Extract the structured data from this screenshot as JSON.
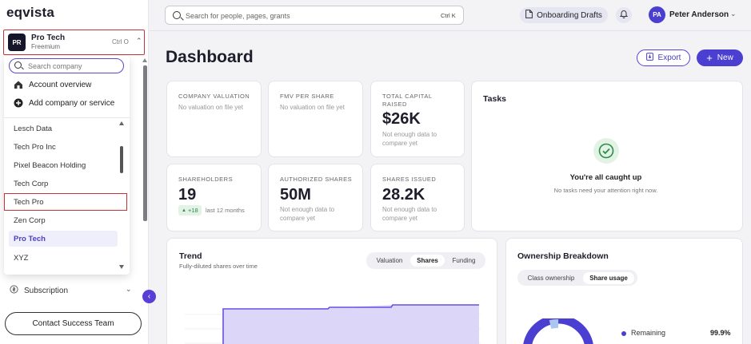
{
  "app": {
    "logo": "eqvista"
  },
  "company_switcher": {
    "initials": "PR",
    "name": "Pro Tech",
    "plan": "Freemium",
    "shortcut": "Ctrl O"
  },
  "company_dropdown": {
    "search_placeholder": "Search company",
    "actions": [
      {
        "label": "Account overview",
        "icon": "building-icon"
      },
      {
        "label": "Add company or service",
        "icon": "plus-circle-icon"
      }
    ],
    "companies": [
      "Lesch Data",
      "Tech Pro Inc",
      "Pixel Beacon Holding",
      "Tech Corp",
      "Tech Pro",
      "Zen Corp",
      "Pro Tech",
      "XYZ"
    ],
    "selected": "Pro Tech"
  },
  "sidebar": {
    "subscription_label": "Subscription",
    "contact_button": "Contact Success Team"
  },
  "header": {
    "search_placeholder": "Search for people, pages, grants",
    "search_shortcut": "Ctrl K",
    "drafts_button": "Onboarding Drafts",
    "user": {
      "initials": "PA",
      "name": "Peter Anderson"
    }
  },
  "page": {
    "title": "Dashboard",
    "export_label": "Export",
    "new_label": "New"
  },
  "cards": {
    "company_valuation": {
      "label": "COMPANY VALUATION",
      "note": "No valuation on file yet"
    },
    "fmv": {
      "label": "FMV PER SHARE",
      "note": "No valuation on file yet"
    },
    "capital": {
      "label": "TOTAL CAPITAL RAISED",
      "value": "$26K",
      "note": "Not enough data to compare yet"
    },
    "shareholders": {
      "label": "SHAREHOLDERS",
      "value": "19",
      "delta": "+18",
      "delta_note": "last 12 months"
    },
    "authorized": {
      "label": "AUTHORIZED SHARES",
      "value": "50M",
      "note": "Not enough data to compare yet"
    },
    "issued": {
      "label": "SHARES ISSUED",
      "value": "28.2K",
      "note": "Not enough data to compare yet"
    }
  },
  "tasks": {
    "title": "Tasks",
    "message": "You're all caught up",
    "sub": "No tasks need your attention right now."
  },
  "trend": {
    "title": "Trend",
    "subtitle": "Fully-diluted shares over time",
    "tabs": [
      "Valuation",
      "Shares",
      "Funding"
    ],
    "active_tab": "Shares",
    "colors": {
      "line": "#6c4fe0",
      "fill": "#dcd6f8"
    }
  },
  "ownership": {
    "title": "Ownership Breakdown",
    "tabs": [
      "Class ownership",
      "Share usage"
    ],
    "active_tab": "Share usage",
    "legend": [
      {
        "label": "Remaining",
        "value": "99.9%"
      }
    ],
    "colors": {
      "remaining": "#4a3fd0"
    }
  }
}
